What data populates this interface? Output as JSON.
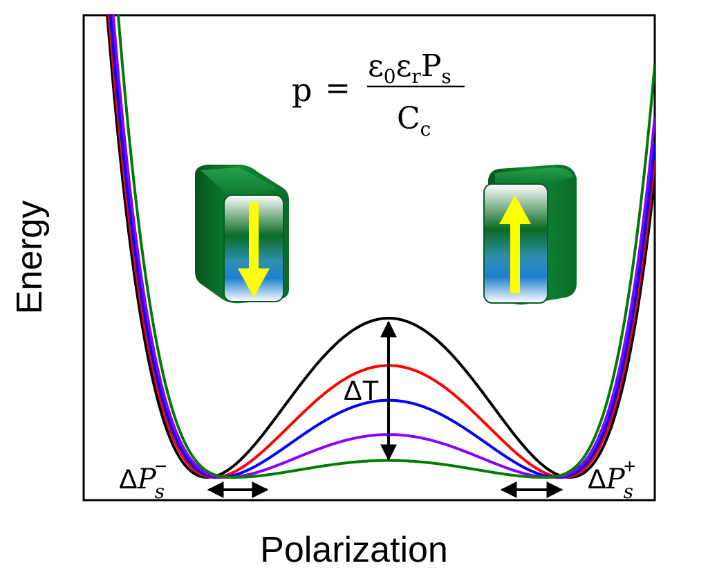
{
  "axes": {
    "x_label": "Polarization",
    "y_label": "Energy"
  },
  "equation": {
    "lhs": "p",
    "equals": "=",
    "numerator_parts": [
      "ε",
      "0",
      "ε",
      "r",
      "P",
      "s"
    ],
    "denominator_parts": [
      "C",
      "c"
    ]
  },
  "annotations": {
    "barrier_label": "ΔT",
    "left_shift_label": [
      "Δ",
      "P",
      "s",
      "−"
    ],
    "right_shift_label": [
      "Δ",
      "P",
      "s",
      "+"
    ]
  },
  "curves": [
    {
      "color": "#000000",
      "barrier": 1.0
    },
    {
      "color": "#ff0000",
      "barrier": 0.703
    },
    {
      "color": "#0000ff",
      "barrier": 0.484
    },
    {
      "color": "#8a00ff",
      "barrier": 0.269
    },
    {
      "color": "#007a00",
      "barrier": 0.106
    }
  ],
  "domains": [
    {
      "name": "domain-down",
      "arrow_direction": "down"
    },
    {
      "name": "domain-up",
      "arrow_direction": "up"
    }
  ],
  "colors": {
    "domain_green": "#0a6b2a",
    "arrow_yellow": "#ffff00"
  }
}
